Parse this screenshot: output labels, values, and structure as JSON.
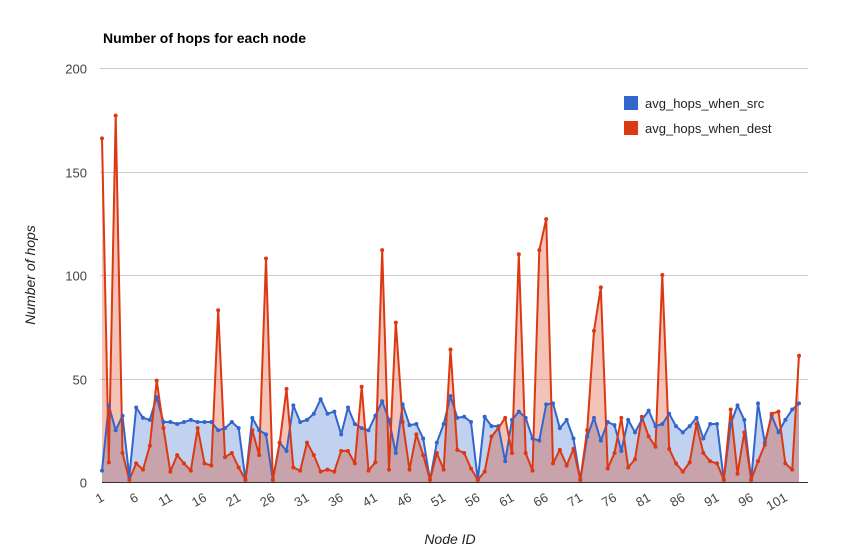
{
  "chart_data": {
    "type": "area",
    "title": "Number of hops for each node",
    "xlabel": "Node ID",
    "ylabel": "Number of hops",
    "ylim": [
      0,
      200
    ],
    "y_ticks": [
      0,
      50,
      100,
      150,
      200
    ],
    "x_tick_labels": [
      "1",
      "6",
      "11",
      "16",
      "21",
      "26",
      "31",
      "36",
      "41",
      "46",
      "51",
      "56",
      "61",
      "66",
      "71",
      "76",
      "81",
      "86",
      "91",
      "96",
      "101"
    ],
    "grid": true,
    "legend_position": "top-right",
    "x_start": 1,
    "series": [
      {
        "name": "avg_hops_when_src",
        "color": "#3366cc",
        "values": [
          5.5,
          37,
          25,
          32,
          2.6,
          36,
          31,
          30,
          41,
          29,
          29,
          28,
          29,
          30,
          29,
          29,
          29,
          25,
          26,
          29,
          26,
          1,
          31,
          25,
          23,
          1,
          19,
          15,
          37,
          29,
          30,
          33,
          40,
          33,
          34,
          23,
          36,
          28,
          26,
          25,
          32,
          39,
          30,
          14,
          37.5,
          27.5,
          28,
          21,
          1,
          19,
          28,
          41.5,
          31,
          31.5,
          29,
          1,
          31.5,
          27,
          27,
          10,
          30,
          34,
          31,
          21,
          20,
          37.5,
          38,
          26,
          30,
          21,
          1,
          22,
          31,
          20,
          29,
          27.5,
          15,
          30,
          24,
          30,
          34.5,
          27,
          28,
          33,
          27,
          24,
          27,
          31,
          21,
          28,
          28,
          1,
          28,
          37,
          30,
          1,
          38,
          19,
          32,
          24,
          30,
          35,
          38
        ]
      },
      {
        "name": "avg_hops_when_dest",
        "color": "#dc3912",
        "values": [
          166,
          9.5,
          177,
          14,
          1,
          9,
          6,
          17.5,
          49,
          26,
          5,
          13,
          9,
          5.5,
          26,
          9,
          8,
          83,
          12,
          14,
          7,
          1,
          25,
          13,
          108,
          1,
          19,
          45,
          7,
          5.5,
          19,
          13,
          5,
          6,
          5,
          15,
          15,
          9,
          46,
          5.5,
          9.5,
          112,
          6,
          77,
          29,
          6,
          23,
          13,
          1,
          14,
          6,
          64,
          15.5,
          14,
          6.5,
          1,
          5,
          22,
          26,
          31,
          14,
          110,
          14,
          5.5,
          112,
          127,
          9,
          15.5,
          8,
          16,
          1,
          25,
          73,
          94,
          6.5,
          14,
          31,
          7,
          11,
          31.5,
          22,
          17,
          100,
          16,
          9,
          5,
          9.5,
          28,
          14,
          10,
          9,
          1,
          35,
          4,
          24,
          1,
          10,
          18,
          33,
          34,
          9,
          6,
          61
        ]
      }
    ]
  }
}
